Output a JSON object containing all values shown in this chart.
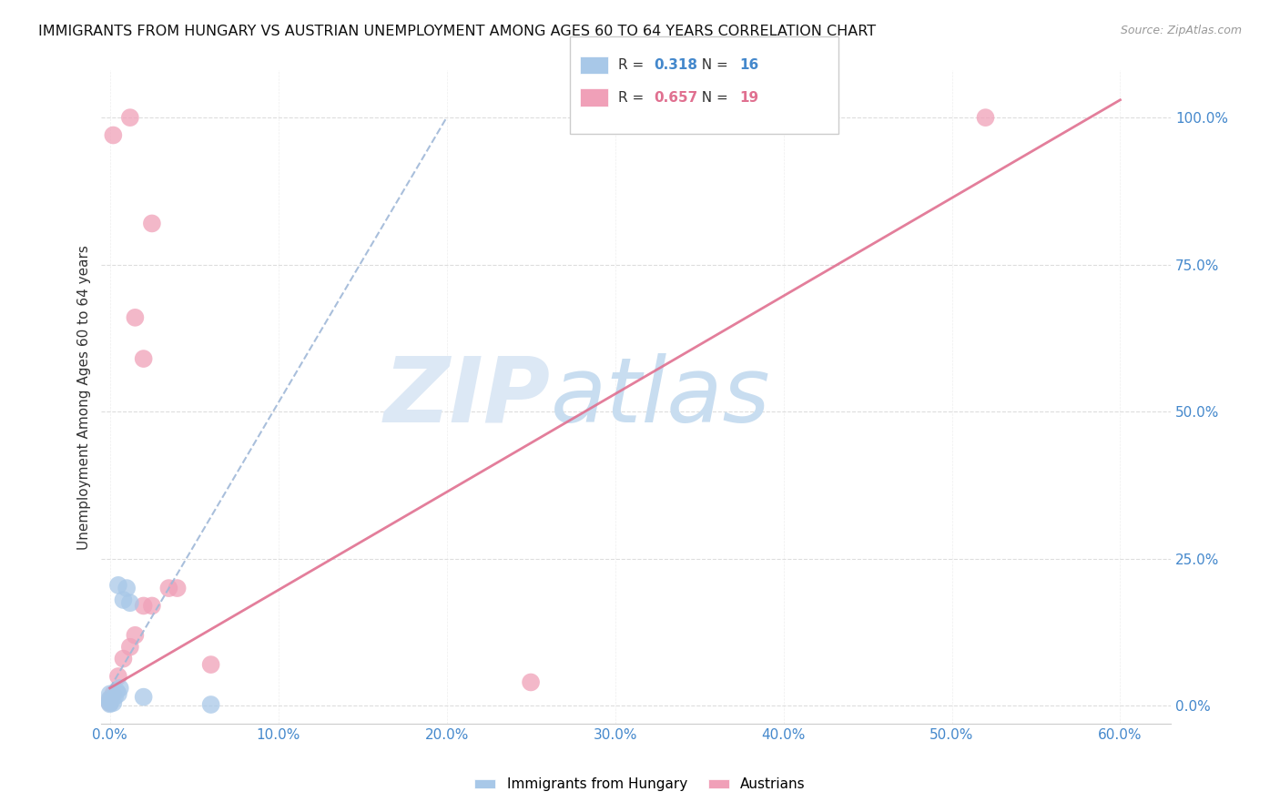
{
  "title": "IMMIGRANTS FROM HUNGARY VS AUSTRIAN UNEMPLOYMENT AMONG AGES 60 TO 64 YEARS CORRELATION CHART",
  "source": "Source: ZipAtlas.com",
  "xlabel_vals": [
    0.0,
    10.0,
    20.0,
    30.0,
    40.0,
    50.0,
    60.0
  ],
  "ylabel_vals": [
    0.0,
    25.0,
    50.0,
    75.0,
    100.0
  ],
  "xlim": [
    -0.5,
    63
  ],
  "ylim": [
    -3,
    108
  ],
  "ylabel": "Unemployment Among Ages 60 to 64 years",
  "blue_label": "Immigrants from Hungary",
  "pink_label": "Austrians",
  "blue_R": 0.318,
  "blue_N": 16,
  "pink_R": 0.657,
  "pink_N": 19,
  "blue_color": "#a8c8e8",
  "blue_line_color": "#a0b8d8",
  "pink_color": "#f0a0b8",
  "pink_line_color": "#e07090",
  "blue_scatter": [
    [
      0.0,
      0.3
    ],
    [
      0.0,
      0.5
    ],
    [
      0.0,
      0.8
    ],
    [
      0.0,
      1.2
    ],
    [
      0.0,
      2.0
    ],
    [
      0.2,
      0.5
    ],
    [
      0.3,
      1.5
    ],
    [
      0.4,
      2.5
    ],
    [
      0.5,
      2.0
    ],
    [
      0.6,
      3.0
    ],
    [
      0.8,
      18.0
    ],
    [
      1.0,
      20.0
    ],
    [
      1.2,
      17.5
    ],
    [
      2.0,
      1.5
    ],
    [
      6.0,
      0.2
    ],
    [
      0.5,
      20.5
    ]
  ],
  "pink_scatter": [
    [
      0.0,
      0.5
    ],
    [
      0.0,
      1.0
    ],
    [
      0.2,
      2.0
    ],
    [
      0.5,
      5.0
    ],
    [
      0.8,
      8.0
    ],
    [
      1.2,
      10.0
    ],
    [
      1.5,
      12.0
    ],
    [
      2.0,
      17.0
    ],
    [
      2.5,
      17.0
    ],
    [
      3.5,
      20.0
    ],
    [
      4.0,
      20.0
    ],
    [
      6.0,
      7.0
    ],
    [
      2.5,
      82.0
    ],
    [
      1.5,
      66.0
    ],
    [
      1.2,
      100.0
    ],
    [
      2.0,
      59.0
    ],
    [
      52.0,
      100.0
    ],
    [
      25.0,
      4.0
    ],
    [
      0.2,
      97.0
    ]
  ],
  "blue_line_x": [
    0.0,
    20.0
  ],
  "blue_line_y": [
    3.0,
    100.0
  ],
  "pink_line_x": [
    0.0,
    60.0
  ],
  "pink_line_y": [
    3.0,
    103.0
  ],
  "background_color": "#ffffff",
  "grid_color": "#dddddd",
  "watermark_zip": "ZIP",
  "watermark_atlas": "atlas",
  "watermark_color": "#dce8f5"
}
